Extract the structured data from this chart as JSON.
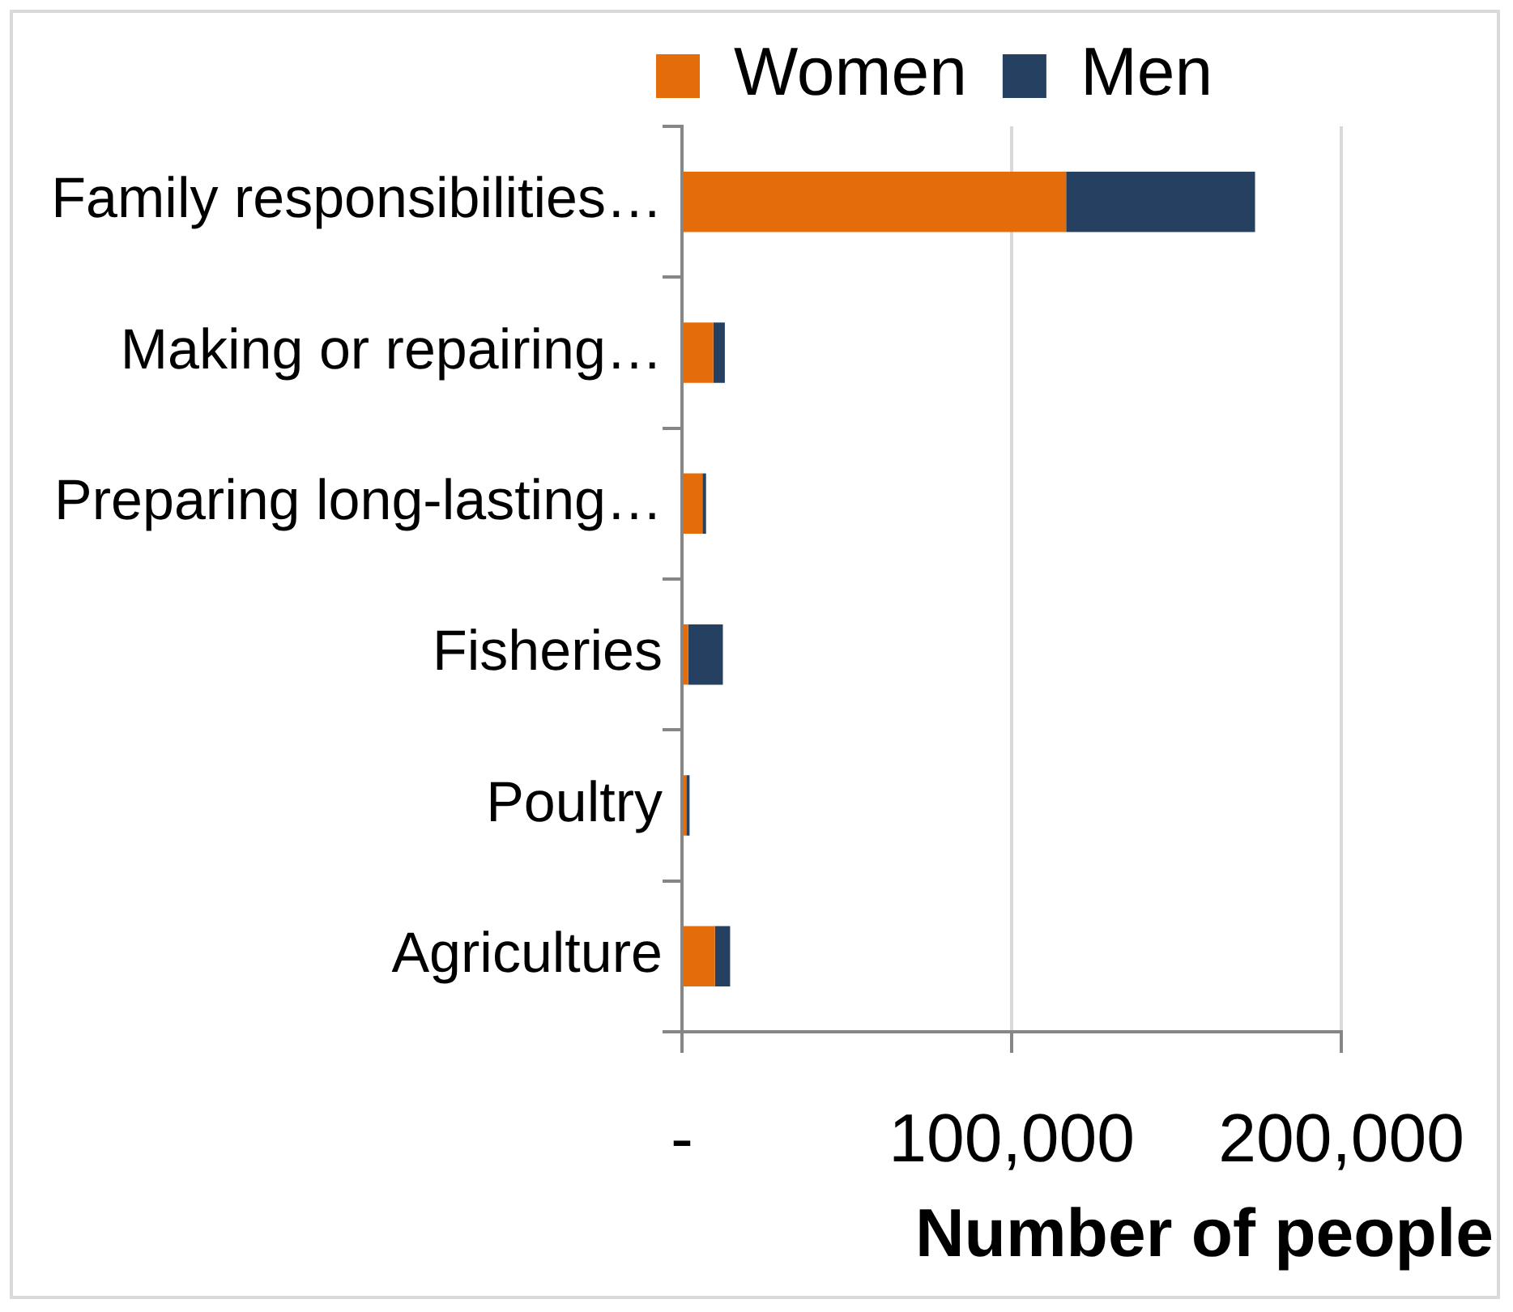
{
  "chart_data": {
    "type": "bar",
    "orientation": "horizontal",
    "stacked": true,
    "categories": [
      "Family responsibilities…",
      "Making or repairing…",
      "Preparing long-lasting…",
      "Fisheries",
      "Poultry",
      "Agriculture"
    ],
    "series": [
      {
        "name": "Women",
        "color": "#e46c0a",
        "values": [
          116500,
          9500,
          6200,
          1900,
          1300,
          10000
        ]
      },
      {
        "name": "Men",
        "color": "#254061",
        "values": [
          57300,
          3500,
          1100,
          10500,
          1000,
          4600
        ]
      }
    ],
    "xlabel": "Number of people",
    "xlim": [
      0,
      200000
    ],
    "xticks": [
      {
        "value": 0,
        "label": "-"
      },
      {
        "value": 100000,
        "label": "100,000"
      },
      {
        "value": 200000,
        "label": "200,000"
      }
    ],
    "grid": "x",
    "legend": "top"
  }
}
